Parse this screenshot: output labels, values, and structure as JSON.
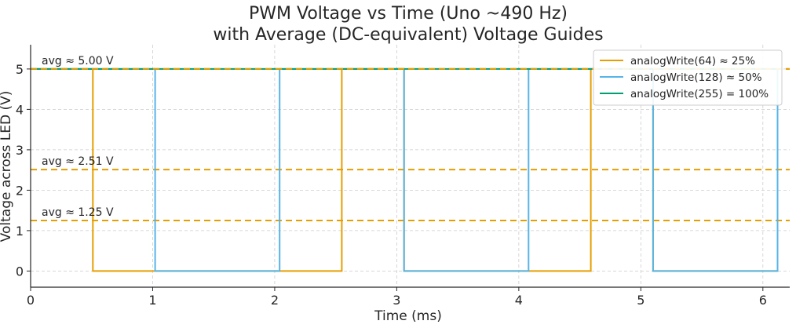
{
  "chart_data": {
    "type": "line",
    "title": [
      "PWM Voltage vs Time (Uno ~490 Hz)",
      "with Average (DC-equivalent) Voltage Guides"
    ],
    "xlabel": "Time (ms)",
    "ylabel": "Voltage across LED (V)",
    "xlim": [
      0,
      6.22
    ],
    "ylim": [
      -0.4,
      5.6
    ],
    "xticks": [
      0,
      1,
      2,
      3,
      4,
      5,
      6
    ],
    "yticks": [
      0,
      1,
      2,
      3,
      4,
      5
    ],
    "grid": true,
    "legend_position": "top-right",
    "series": [
      {
        "name": "analogWrite(64) ≈ 25%",
        "color": "#e69f00",
        "x": [
          0,
          0.51,
          0.51,
          2.55,
          2.55,
          3.06,
          3.06,
          4.59,
          4.59,
          5.1,
          5.1,
          6.12
        ],
        "y": [
          5,
          5,
          0,
          0,
          5,
          5,
          0,
          0,
          5,
          5,
          0,
          0
        ]
      },
      {
        "name": "analogWrite(128) ≈ 50%",
        "color": "#56b4e9",
        "x": [
          0,
          1.02,
          1.02,
          2.04,
          2.04,
          3.06,
          3.06,
          4.08,
          4.08,
          5.1,
          5.1,
          6.12,
          6.12
        ],
        "y": [
          5,
          5,
          0,
          0,
          5,
          5,
          0,
          0,
          5,
          5,
          0,
          0,
          5
        ]
      },
      {
        "name": "analogWrite(255) = 100%",
        "color": "#009e73",
        "x": [
          0,
          6.12
        ],
        "y": [
          5,
          5
        ]
      }
    ],
    "avg_lines": [
      {
        "value": 5.0,
        "label": "avg ≈ 5.00 V",
        "color": "#e69f00"
      },
      {
        "value": 2.51,
        "label": "avg ≈ 2.51 V",
        "color": "#e69f00"
      },
      {
        "value": 1.25,
        "label": "avg ≈ 1.25 V",
        "color": "#e69f00"
      }
    ]
  }
}
